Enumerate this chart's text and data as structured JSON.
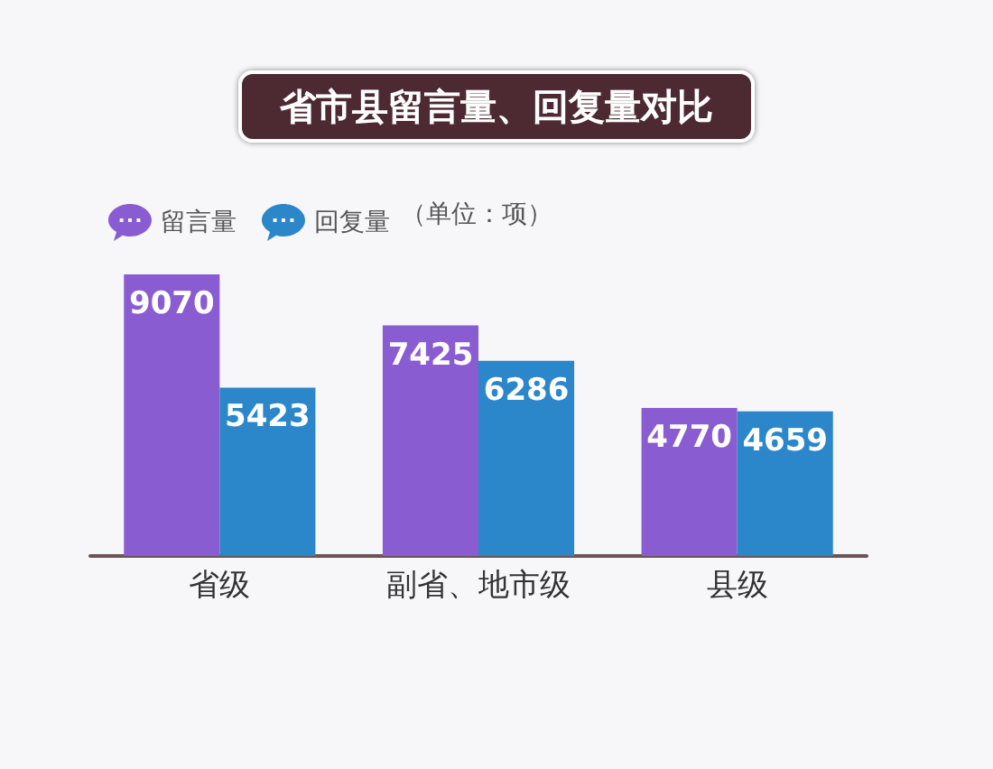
{
  "chart_data": {
    "type": "bar",
    "title": "省市县留言量、回复量对比",
    "categories": [
      "省级",
      "副省、地市级",
      "县级"
    ],
    "series": [
      {
        "name": "留言量",
        "color": "#8a5cd2",
        "values": [
          9070,
          7425,
          4770
        ]
      },
      {
        "name": "回复量",
        "color": "#2b87c9",
        "values": [
          5423,
          6286,
          4659
        ]
      }
    ],
    "data_labels": true,
    "legend": "top left",
    "annotations": [
      "（单位：项）"
    ]
  }
}
